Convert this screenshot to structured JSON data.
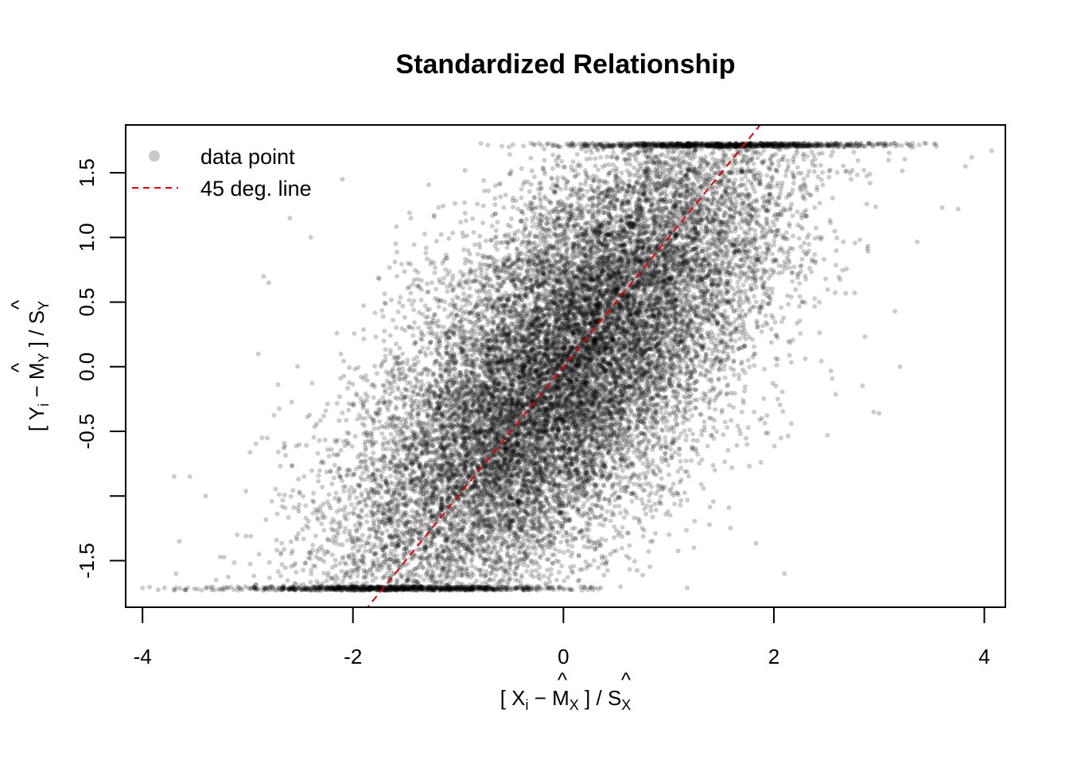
{
  "chart_data": {
    "type": "scatter",
    "title": "Standardized Relationship",
    "xlabel": {
      "open": "[ X",
      "sub": "i",
      "minus": " − ",
      "hat_m": "M",
      "hat_m_sub": "X",
      "close": " ] / ",
      "hat_s": "S",
      "hat_s_sub": "X",
      "hat": "^"
    },
    "ylabel": {
      "open": "[ Y",
      "sub": "i",
      "minus": " − ",
      "hat_m": "M",
      "hat_m_sub": "Y",
      "close": " ] / ",
      "hat_s": "S",
      "hat_s_sub": "Y",
      "hat": "^"
    },
    "xlim": [
      -4.16,
      4.2
    ],
    "ylim": [
      -1.86,
      1.87
    ],
    "x_ticks": [
      -4,
      -2,
      0,
      2,
      4
    ],
    "x_tick_labels": [
      "-4",
      "-2",
      "0",
      "2",
      "4"
    ],
    "y_ticks": [
      -1.5,
      -1.0,
      -0.5,
      0.0,
      0.5,
      1.0,
      1.5
    ],
    "y_tick_labels": [
      "-1.5",
      "",
      "-0.5",
      "0.0",
      "0.5",
      "1.0",
      "1.5"
    ],
    "y_clip": [
      -1.73,
      1.73
    ],
    "point_color": "#000000",
    "point_opacity": 0.2,
    "line": {
      "name": "45 deg. line",
      "slope": 1,
      "intercept": 0,
      "color": "#e00000",
      "style": "dashed"
    },
    "series": [
      {
        "name": "data point",
        "distribution": "bivariate normal, clipped",
        "approx_points": 20000,
        "correlation": 0.7
      }
    ],
    "outliers": [
      [
        -4.0,
        -1.71
      ],
      [
        -3.65,
        -1.35
      ],
      [
        -3.68,
        -1.6
      ],
      [
        -3.7,
        -0.85
      ],
      [
        -3.55,
        -0.85
      ],
      [
        4.07,
        1.67
      ],
      [
        3.88,
        1.62
      ],
      [
        3.82,
        1.55
      ],
      [
        3.6,
        1.23
      ],
      [
        3.75,
        1.22
      ],
      [
        -2.6,
        1.15
      ],
      [
        -2.85,
        0.7
      ],
      [
        -2.8,
        0.65
      ],
      [
        -2.9,
        0.1
      ],
      [
        3.15,
        0.43
      ],
      [
        3.2,
        0.0
      ],
      [
        2.95,
        -0.35
      ],
      [
        3.0,
        -0.36
      ],
      [
        2.1,
        -1.6
      ],
      [
        -3.3,
        -1.65
      ],
      [
        -3.1,
        -1.3
      ],
      [
        -2.4,
        1.0
      ],
      [
        -2.1,
        1.45
      ],
      [
        3.3,
        1.7
      ],
      [
        -3.4,
        -1.0
      ]
    ]
  }
}
